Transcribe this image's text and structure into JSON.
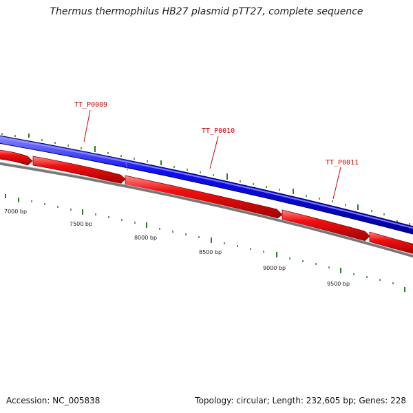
{
  "title": "Thermus thermophilus HB27 plasmid pTT27, complete sequence",
  "footer": {
    "accession": "Accession: NC_005838",
    "summary": "Topology: circular; Length: 232,605 bp; Genes: 228"
  },
  "colors": {
    "forward_strand": "#0000ee",
    "reverse_strand": "#ee0000",
    "backbone": "#888888",
    "ticks": "#2a7a2a",
    "gene_label": "#cc0000",
    "bp_label": "#222222"
  },
  "gene_labels": [
    {
      "name": "TT_P0009"
    },
    {
      "name": "TT_P0010"
    },
    {
      "name": "TT_P0011"
    }
  ],
  "bp_labels": [
    "7000 bp",
    "7500 bp",
    "8000 bp",
    "8500 bp",
    "9000 bp",
    "9500 bp"
  ]
}
